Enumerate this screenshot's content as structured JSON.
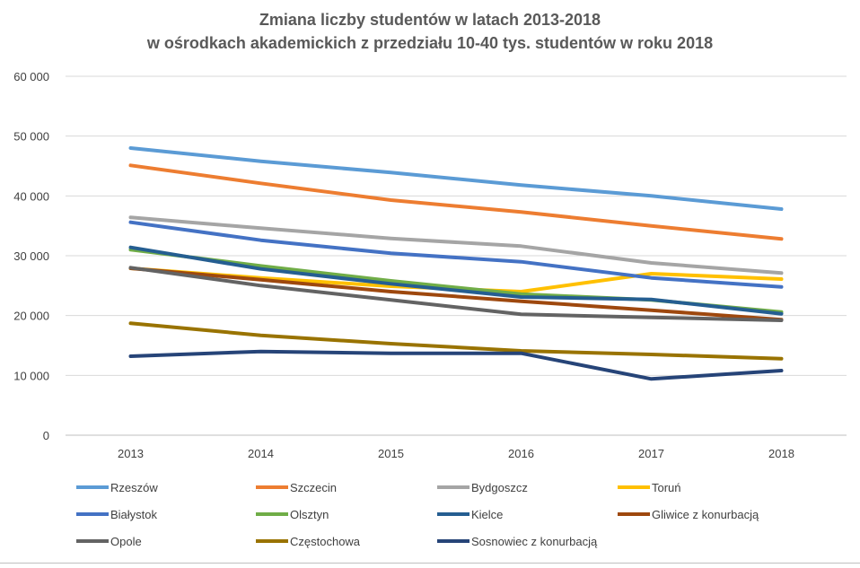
{
  "chart_data": {
    "type": "line",
    "title": "Zmiana liczby studentów w latach 2013-2018",
    "subtitle": "w ośrodkach akademickich z przedziału 10-40 tys. studentów w roku 2018",
    "xlabel": "",
    "ylabel": "",
    "categories": [
      "2013",
      "2014",
      "2015",
      "2016",
      "2017",
      "2018"
    ],
    "ylim": [
      0,
      60000
    ],
    "y_ticks": [
      0,
      10000,
      20000,
      30000,
      40000,
      50000,
      60000
    ],
    "y_tick_labels": [
      "0",
      "10 000",
      "20 000",
      "30 000",
      "40 000",
      "50 000",
      "60 000"
    ],
    "grid": true,
    "legend_position": "bottom",
    "series": [
      {
        "name": "Rzeszów",
        "color": "#5B9BD5",
        "values": [
          48000,
          45800,
          43900,
          41800,
          40000,
          37800
        ]
      },
      {
        "name": "Szczecin",
        "color": "#ED7D31",
        "values": [
          45100,
          42100,
          39300,
          37300,
          35000,
          32800
        ]
      },
      {
        "name": "Bydgoszcz",
        "color": "#A5A5A5",
        "values": [
          36400,
          34600,
          32900,
          31600,
          28800,
          27100
        ]
      },
      {
        "name": "Toruń",
        "color": "#FFC000",
        "values": [
          27900,
          26300,
          24900,
          24000,
          27000,
          26100
        ]
      },
      {
        "name": "Białystok",
        "color": "#4472C4",
        "values": [
          35600,
          32600,
          30400,
          29000,
          26300,
          24800
        ]
      },
      {
        "name": "Olsztyn",
        "color": "#70AD47",
        "values": [
          31000,
          28300,
          25800,
          23600,
          22600,
          20600
        ]
      },
      {
        "name": "Kielce",
        "color": "#255E91",
        "values": [
          31400,
          27800,
          25300,
          23100,
          22700,
          20300
        ]
      },
      {
        "name": "Gliwice z konurbacją",
        "color": "#9E480E",
        "values": [
          27900,
          26000,
          24000,
          22400,
          20900,
          19300
        ]
      },
      {
        "name": "Opole",
        "color": "#636363",
        "values": [
          28000,
          25000,
          22600,
          20200,
          19700,
          19200
        ]
      },
      {
        "name": "Częstochowa",
        "color": "#997300",
        "values": [
          18700,
          16700,
          15300,
          14100,
          13500,
          12800
        ]
      },
      {
        "name": "Sosnowiec z konurbacją",
        "color": "#264478",
        "values": [
          13200,
          14000,
          13700,
          13700,
          9400,
          10800
        ]
      }
    ]
  }
}
